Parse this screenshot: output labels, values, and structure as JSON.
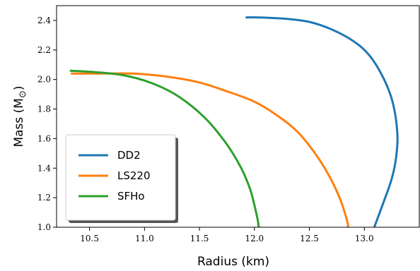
{
  "chart_data": {
    "type": "line",
    "title": "",
    "xlabel": "Radius (km)",
    "ylabel": "Mass (M",
    "ylabel_subscript": "⊙",
    "ylabel_suffix": ")",
    "xlim": [
      10.2,
      13.5
    ],
    "ylim": [
      1.0,
      2.5
    ],
    "xticks": [
      10.5,
      11.0,
      11.5,
      12.0,
      12.5,
      13.0
    ],
    "xtick_labels": [
      "10.5",
      "11.0",
      "11.5",
      "12.0",
      "12.5",
      "13.0"
    ],
    "yticks": [
      1.0,
      1.2,
      1.4,
      1.6,
      1.8,
      2.0,
      2.2,
      2.4
    ],
    "ytick_labels": [
      "1.0",
      "1.2",
      "1.4",
      "1.6",
      "1.8",
      "2.0",
      "2.2",
      "2.4"
    ],
    "grid": false,
    "legend_position": "lower-left",
    "series": [
      {
        "name": "DD2",
        "color": "#1f77b4",
        "x": [
          11.92,
          12.05,
          12.3,
          12.5,
          12.7,
          12.9,
          13.05,
          13.18,
          13.26,
          13.3,
          13.29,
          13.25,
          13.18,
          13.09
        ],
        "y": [
          2.42,
          2.42,
          2.41,
          2.39,
          2.34,
          2.26,
          2.16,
          2.0,
          1.84,
          1.64,
          1.48,
          1.33,
          1.18,
          1.0
        ]
      },
      {
        "name": "LS220",
        "color": "#ff7f0e",
        "x": [
          10.33,
          10.6,
          10.9,
          11.2,
          11.5,
          11.75,
          12.0,
          12.2,
          12.4,
          12.58,
          12.7,
          12.78,
          12.83,
          12.85,
          12.85
        ],
        "y": [
          2.04,
          2.04,
          2.04,
          2.02,
          1.98,
          1.92,
          1.85,
          1.76,
          1.64,
          1.47,
          1.32,
          1.19,
          1.08,
          1.02,
          1.0
        ]
      },
      {
        "name": "SFHo",
        "color": "#2ca02c",
        "x": [
          10.32,
          10.55,
          10.8,
          11.05,
          11.3,
          11.55,
          11.75,
          11.88,
          11.96,
          12.0,
          12.03,
          12.04
        ],
        "y": [
          2.06,
          2.05,
          2.03,
          1.98,
          1.89,
          1.74,
          1.56,
          1.4,
          1.26,
          1.15,
          1.05,
          1.0
        ]
      }
    ]
  }
}
